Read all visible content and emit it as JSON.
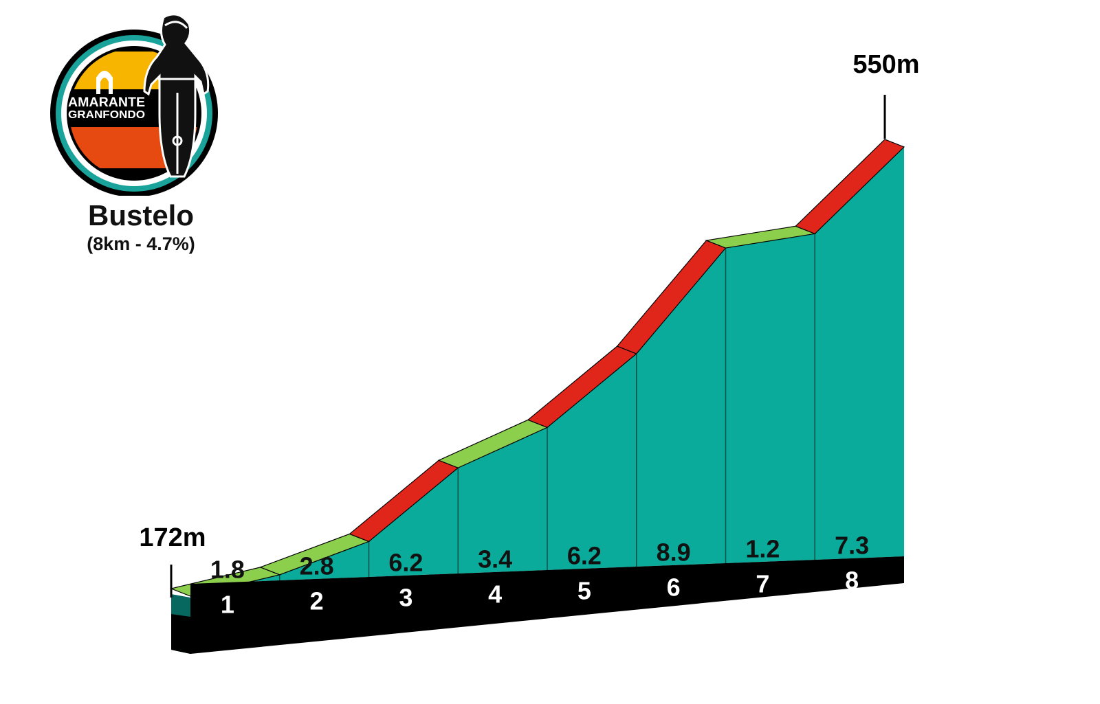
{
  "header": {
    "logo_text_line1": "AMARANTE",
    "logo_text_line2": "GRANFONDO",
    "climb_name": "Bustelo",
    "climb_stats": "(8km - 4.7%)"
  },
  "colors": {
    "profile_fill": "#0aab9a",
    "base_band": "#000000",
    "easy_segment": "#8ccf4d",
    "hard_segment": "#e0261b",
    "logo_ring": "#1aa39a",
    "logo_yellow": "#f7b500",
    "logo_orange": "#e64a10"
  },
  "chart_data": {
    "type": "elevation-profile",
    "start_label": "172m",
    "end_label": "550m",
    "start_elevation": 172,
    "end_elevation": 550,
    "x_unit": "km",
    "categories": [
      "1",
      "2",
      "3",
      "4",
      "5",
      "6",
      "7",
      "8"
    ],
    "gradients": [
      "1.8",
      "2.8",
      "6.2",
      "3.4",
      "6.2",
      "8.9",
      "1.2",
      "7.3"
    ],
    "segment_class": [
      "easy",
      "easy",
      "hard",
      "easy",
      "hard",
      "hard",
      "easy",
      "hard"
    ]
  }
}
